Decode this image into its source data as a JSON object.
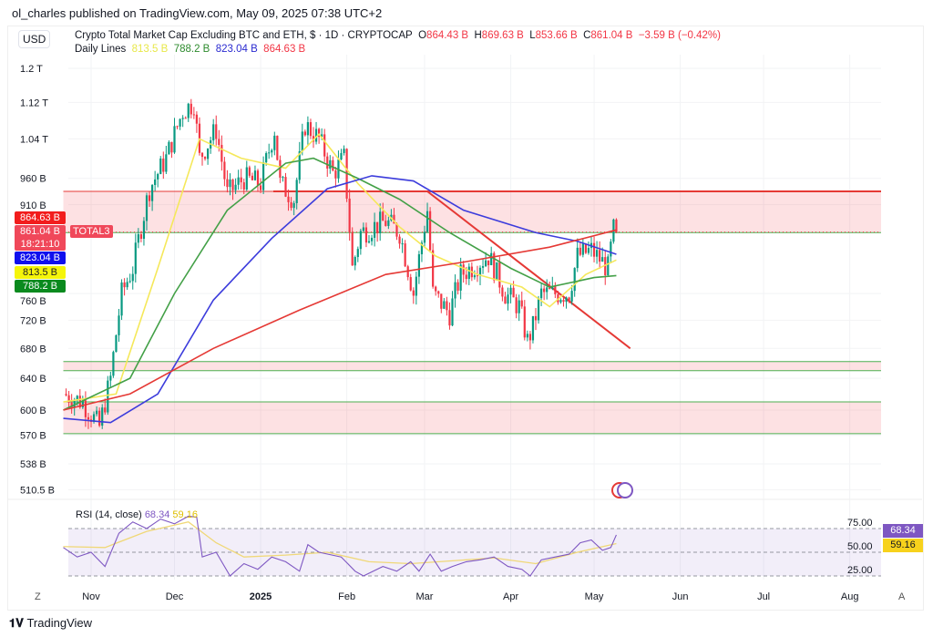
{
  "header": {
    "published": "ol_charles published on TradingView.com, May 09, 2025 07:38 UTC+2",
    "currency": "USD",
    "title": "Crypto Total Market Cap Excluding BTC and ETH, $ · 1D · CRYPTOCAP",
    "o_label": "O",
    "o": "864.43 B",
    "h_label": "H",
    "h": "869.63 B",
    "l_label": "L",
    "l": "853.66 B",
    "c_label": "C",
    "c": "861.04 B",
    "change": "−3.59 B (−0.42%)",
    "lines_label": "Daily Lines",
    "ma_values": [
      "813.5 B",
      "788.2 B",
      "823.04 B",
      "864.63 B"
    ]
  },
  "price_labels": {
    "red": "864.63 B",
    "last": "861.04 B",
    "countdown": "18:21:10",
    "symbol": "TOTAL3",
    "blue": "823.04 B",
    "yellow": "813.5 B",
    "green": "788.2 B"
  },
  "colors": {
    "up": "#089981",
    "down": "#f23645",
    "ma20": "#f5e85a",
    "ma50": "#43a047",
    "ma100": "#3c3cdc",
    "ma200": "#e53935"
  },
  "footer": {
    "brand": "TradingView",
    "z": "Z",
    "a": "A"
  },
  "chart_data": [
    {
      "type": "candlestick",
      "title": "Crypto Total Market Cap Excluding BTC and ETH",
      "yscale": "log",
      "ylim": [
        500,
        1230
      ],
      "yticks": [
        [
          "1.2 T",
          1200
        ],
        [
          "1.12 T",
          1120
        ],
        [
          "1.04 T",
          1040
        ],
        [
          "960 B",
          960
        ],
        [
          "910 B",
          910
        ],
        [
          "760 B",
          760
        ],
        [
          "720 B",
          720
        ],
        [
          "680 B",
          680
        ],
        [
          "640 B",
          640
        ],
        [
          "600 B",
          600
        ],
        [
          "570 B",
          570
        ],
        [
          "538 B",
          538
        ],
        [
          "510.5 B",
          510.5
        ]
      ],
      "xticks": [
        [
          "Nov",
          0
        ],
        [
          "Dec",
          30
        ],
        [
          "2025",
          61
        ],
        [
          "Feb",
          92
        ],
        [
          "Mar",
          120
        ],
        [
          "Apr",
          151
        ],
        [
          "May",
          181
        ],
        [
          "Jun",
          212
        ],
        [
          "Jul",
          242
        ],
        [
          "Aug",
          273
        ]
      ],
      "x_unit": "days since 2024-11-01",
      "close_path": [
        [
          -10,
          620
        ],
        [
          -3,
          610
        ],
        [
          3,
          580
        ],
        [
          7,
          640
        ],
        [
          11,
          760
        ],
        [
          15,
          800
        ],
        [
          21,
          940
        ],
        [
          27,
          1000
        ],
        [
          33,
          1100
        ],
        [
          37,
          1120
        ],
        [
          39,
          1000
        ],
        [
          45,
          1060
        ],
        [
          49,
          930
        ],
        [
          55,
          960
        ],
        [
          61,
          950
        ],
        [
          66,
          1060
        ],
        [
          68,
          950
        ],
        [
          73,
          920
        ],
        [
          77,
          1070
        ],
        [
          82,
          1040
        ],
        [
          87,
          970
        ],
        [
          91,
          1000
        ],
        [
          94,
          800
        ],
        [
          97,
          860
        ],
        [
          106,
          880
        ],
        [
          111,
          860
        ],
        [
          116,
          760
        ],
        [
          121,
          900
        ],
        [
          123,
          760
        ],
        [
          129,
          730
        ],
        [
          133,
          790
        ],
        [
          143,
          820
        ],
        [
          149,
          760
        ],
        [
          154,
          740
        ],
        [
          157,
          690
        ],
        [
          159,
          710
        ],
        [
          162,
          760
        ],
        [
          172,
          760
        ],
        [
          175,
          820
        ],
        [
          180,
          830
        ],
        [
          186,
          800
        ],
        [
          188,
          865
        ],
        [
          189,
          861
        ]
      ],
      "series": [
        {
          "name": "MA 20",
          "color": "#f5e85a",
          "points": [
            [
              -10,
              610
            ],
            [
              9,
              620
            ],
            [
              24,
              800
            ],
            [
              39,
              1040
            ],
            [
              54,
              1000
            ],
            [
              70,
              980
            ],
            [
              82,
              1050
            ],
            [
              96,
              950
            ],
            [
              111,
              870
            ],
            [
              124,
              820
            ],
            [
              139,
              790
            ],
            [
              155,
              770
            ],
            [
              165,
              740
            ],
            [
              178,
              790
            ],
            [
              189,
              813.5
            ]
          ]
        },
        {
          "name": "MA 50",
          "color": "#43a047",
          "points": [
            [
              -10,
              600
            ],
            [
              14,
              640
            ],
            [
              30,
              760
            ],
            [
              49,
              900
            ],
            [
              70,
              990
            ],
            [
              80,
              1000
            ],
            [
              96,
              960
            ],
            [
              111,
              920
            ],
            [
              129,
              860
            ],
            [
              151,
              800
            ],
            [
              165,
              770
            ],
            [
              181,
              785
            ],
            [
              189,
              788.2
            ]
          ]
        },
        {
          "name": "MA 100",
          "color": "#3c3cdc",
          "points": [
            [
              -10,
              590
            ],
            [
              7,
              585
            ],
            [
              24,
              620
            ],
            [
              44,
              750
            ],
            [
              65,
              850
            ],
            [
              85,
              940
            ],
            [
              101,
              965
            ],
            [
              116,
              955
            ],
            [
              134,
              900
            ],
            [
              160,
              860
            ],
            [
              175,
              845
            ],
            [
              189,
              823.04
            ]
          ]
        },
        {
          "name": "MA 200",
          "color": "#e53935",
          "points": [
            [
              -10,
              600
            ],
            [
              14,
              620
            ],
            [
              44,
              680
            ],
            [
              75,
              735
            ],
            [
              106,
              790
            ],
            [
              134,
              810
            ],
            [
              165,
              835
            ],
            [
              189,
              864.63
            ]
          ]
        }
      ],
      "zones": [
        [
          860,
          935
        ],
        [
          650,
          662
        ],
        [
          572,
          610
        ]
      ],
      "annotations": {
        "resistance_line": 935,
        "trendline": [
          [
            121,
            935
          ],
          [
            194,
            680
          ]
        ]
      }
    },
    {
      "type": "line",
      "title": "RSI (14, close)",
      "values_label": [
        "68.34",
        "59.16"
      ],
      "ylim": [
        25,
        75
      ],
      "yticks": [
        "75.00",
        "50.00",
        "25.00"
      ],
      "rsi": [
        [
          -10,
          55
        ],
        [
          -5,
          45
        ],
        [
          0,
          50
        ],
        [
          5,
          35
        ],
        [
          10,
          70
        ],
        [
          15,
          82
        ],
        [
          20,
          75
        ],
        [
          25,
          85
        ],
        [
          30,
          80
        ],
        [
          35,
          88
        ],
        [
          38,
          87
        ],
        [
          40,
          45
        ],
        [
          45,
          50
        ],
        [
          50,
          25
        ],
        [
          55,
          38
        ],
        [
          60,
          32
        ],
        [
          65,
          45
        ],
        [
          70,
          40
        ],
        [
          75,
          30
        ],
        [
          78,
          58
        ],
        [
          82,
          50
        ],
        [
          90,
          45
        ],
        [
          95,
          30
        ],
        [
          98,
          25
        ],
        [
          105,
          35
        ],
        [
          110,
          30
        ],
        [
          115,
          40
        ],
        [
          118,
          30
        ],
        [
          122,
          48
        ],
        [
          126,
          30
        ],
        [
          130,
          35
        ],
        [
          135,
          40
        ],
        [
          140,
          42
        ],
        [
          145,
          45
        ],
        [
          150,
          35
        ],
        [
          155,
          32
        ],
        [
          158,
          25
        ],
        [
          162,
          42
        ],
        [
          167,
          45
        ],
        [
          172,
          48
        ],
        [
          176,
          60
        ],
        [
          180,
          63
        ],
        [
          184,
          52
        ],
        [
          187,
          55
        ],
        [
          189,
          68.34
        ]
      ],
      "signal": [
        [
          -10,
          56
        ],
        [
          5,
          55
        ],
        [
          20,
          72
        ],
        [
          35,
          82
        ],
        [
          45,
          60
        ],
        [
          55,
          45
        ],
        [
          70,
          47
        ],
        [
          85,
          50
        ],
        [
          100,
          40
        ],
        [
          115,
          38
        ],
        [
          130,
          41
        ],
        [
          145,
          44
        ],
        [
          160,
          38
        ],
        [
          175,
          50
        ],
        [
          189,
          59.16
        ]
      ]
    }
  ]
}
